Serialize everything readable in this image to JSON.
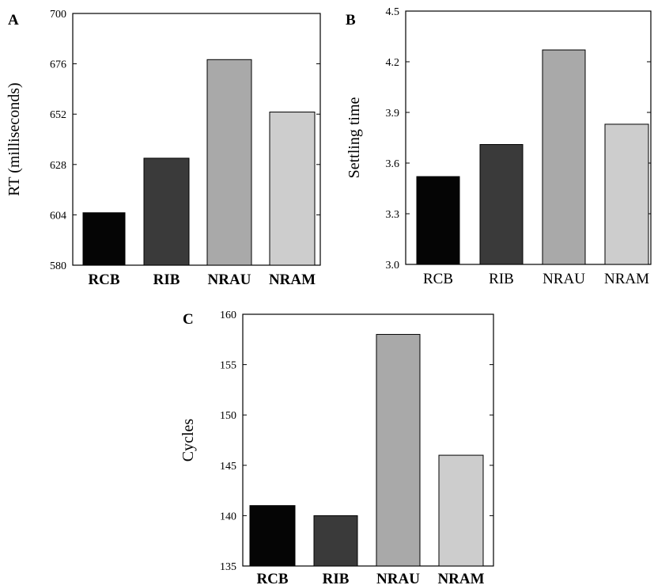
{
  "chart_data": [
    {
      "type": "bar",
      "panel": "A",
      "categories": [
        "RCB",
        "RIB",
        "NRAU",
        "NRAM"
      ],
      "values": [
        605,
        631,
        678,
        653
      ],
      "ylabel": "RT (milliseconds)",
      "xlabel": "",
      "ylim": [
        580,
        700
      ],
      "yticks": [
        "580",
        "604",
        "628",
        "652",
        "676",
        "700"
      ],
      "grid": false,
      "colors": [
        "#050505",
        "#3a3a3a",
        "#a9a9a9",
        "#cdcdcd"
      ]
    },
    {
      "type": "bar",
      "panel": "B",
      "categories": [
        "RCB",
        "RIB",
        "NRAU",
        "NRAM"
      ],
      "values": [
        3.52,
        3.71,
        4.27,
        3.83
      ],
      "ylabel": "Settling time",
      "xlabel": "",
      "ylim": [
        3.0,
        4.5
      ],
      "yticks": [
        "3.0",
        "3.3",
        "3.6",
        "3.9",
        "4.2",
        "4.5"
      ],
      "grid": false,
      "colors": [
        "#050505",
        "#3a3a3a",
        "#a9a9a9",
        "#cdcdcd"
      ]
    },
    {
      "type": "bar",
      "panel": "C",
      "categories": [
        "RCB",
        "RIB",
        "NRAU",
        "NRAM"
      ],
      "values": [
        141,
        140,
        158,
        146
      ],
      "ylabel": "Cycles",
      "xlabel": "",
      "ylim": [
        135,
        160
      ],
      "yticks": [
        "135",
        "140",
        "145",
        "150",
        "155",
        "160"
      ],
      "grid": false,
      "colors": [
        "#050505",
        "#3a3a3a",
        "#a9a9a9",
        "#cdcdcd"
      ]
    }
  ]
}
